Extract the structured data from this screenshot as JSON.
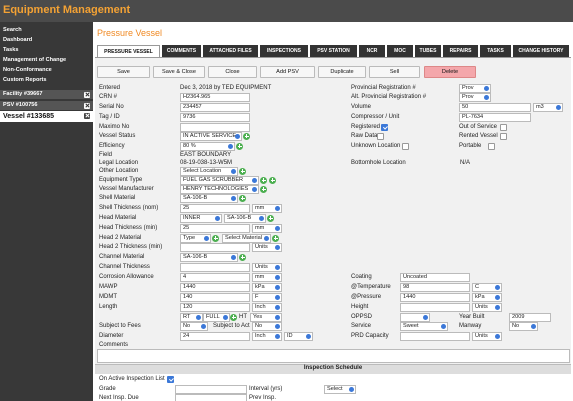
{
  "header": {
    "title": "Equipment Management"
  },
  "nav": [
    "Search",
    "Dashboard",
    "Tasks",
    "Management of Change",
    "Non-Conformance",
    "Custom Reports"
  ],
  "open_records": [
    "Facility #39667",
    "PSV #100756",
    "Vessel #133685"
  ],
  "page_title": "Pressure Vessel",
  "tabs": [
    "PRESSURE VESSEL",
    "COMMENTS",
    "ATTACHED FILES",
    "INSPECTIONS",
    "PSV STATION",
    "NCR",
    "MOC",
    "TUBES",
    "REPAIRS",
    "TASKS",
    "CHANGE HISTORY"
  ],
  "buttons": [
    "Save",
    "Save & Close",
    "Close",
    "Add PSV",
    "Duplicate",
    "Sell",
    "Delete"
  ],
  "fields": {
    "entered": {
      "label": "Entered",
      "value": "Dec 3, 2018 by TED EQUIPMENT"
    },
    "crn": {
      "label": "CRN #",
      "value": "H2364.965"
    },
    "serial": {
      "label": "Serial No",
      "value": "234457"
    },
    "tag": {
      "label": "Tag / ID",
      "value": "9736"
    },
    "maximo": {
      "label": "Maximo No"
    },
    "status": {
      "label": "Vessel Status",
      "value": "IN ACTIVE SERVICE"
    },
    "efficiency": {
      "label": "Efficiency",
      "value": "80 %"
    },
    "field": {
      "label": "Field",
      "value": "EAST BOUNDARY"
    },
    "legal": {
      "label": "Legal Location",
      "value": "08-19-038-13-W5M"
    },
    "other_location": {
      "label": "Other Location",
      "value": "Select Location"
    },
    "equipment_type": {
      "label": "Equipment Type",
      "value": "FUEL GAS SCRUBBER"
    },
    "manufacturer": {
      "label": "Vessel Manufacturer",
      "value": "HENRY TECHNOLOGIES"
    },
    "shell_material": {
      "label": "Shell Material",
      "value": "SA-106-B"
    },
    "shell_thickness": {
      "label": "Shell Thickness (nom)",
      "value": "25",
      "unit": "mm"
    },
    "head_material": {
      "label": "Head Material",
      "value": "INNER",
      "value2": "SA-106-B"
    },
    "head_thickness": {
      "label": "Head Thickness (min)",
      "value": "25",
      "unit": "mm"
    },
    "head2_material": {
      "label": "Head 2 Material",
      "value": "Type",
      "value2": "Select Material"
    },
    "head2_thickness": {
      "label": "Head 2 Thickness (min)",
      "unit": "Units"
    },
    "channel_material": {
      "label": "Channel Material",
      "value": "SA-106-B"
    },
    "channel_thickness": {
      "label": "Channel Thickness",
      "unit": "Units"
    },
    "corrosion": {
      "label": "Corrosion Allowance",
      "value": "4",
      "unit": "mm"
    },
    "mawp": {
      "label": "MAWP",
      "value": "1440",
      "unit": "kPa"
    },
    "mdmt": {
      "label": "MDMT",
      "value": "140",
      "unit": "F"
    },
    "length": {
      "label": "Length",
      "value": "120",
      "unit": "Inch"
    },
    "rt": {
      "value": "RT",
      "value2": "FULL"
    },
    "ht": {
      "label": "HT",
      "value": "Yes"
    },
    "fees": {
      "label": "Subject to Fees",
      "value": "No"
    },
    "act": {
      "label": "Subject to Act",
      "value": "No"
    },
    "diameter": {
      "label": "Diameter",
      "value": "24",
      "unit": "Inch",
      "unit2": "ID"
    },
    "comments": {
      "label": "Comments"
    },
    "prov_reg": {
      "label": "Provincial Registration #",
      "value": "Prov"
    },
    "alt_prov": {
      "label": "Alt. Provincial Registration #",
      "value": "Prov"
    },
    "volume": {
      "label": "Volume",
      "value": "50",
      "unit": "m3"
    },
    "compressor": {
      "label": "Compressor / Unit",
      "value": "PL-7634"
    },
    "registered": {
      "label": "Registered",
      "checked": true
    },
    "out_of_service": {
      "label": "Out of Service",
      "checked": false
    },
    "raw_data": {
      "label": "Raw Data",
      "checked": false
    },
    "rented": {
      "label": "Rented Vessel",
      "checked": false
    },
    "unknown_location": {
      "label": "Unknown Location",
      "checked": false
    },
    "portable": {
      "label": "Portable",
      "checked": false
    },
    "bottomhole": {
      "label": "Bottomhole Location",
      "value": "N/A"
    },
    "coating": {
      "label": "Coating",
      "value": "Uncoated"
    },
    "temperature": {
      "label": "@Temperature",
      "value": "98",
      "unit": "C"
    },
    "pressure": {
      "label": "@Pressure",
      "value": "1440",
      "unit": "kPa"
    },
    "height": {
      "label": "Height",
      "unit": "Units"
    },
    "oppsd": {
      "label": "OPPSD"
    },
    "year_built": {
      "label": "Year Built",
      "value": "2009"
    },
    "service": {
      "label": "Service",
      "value": "Sweet"
    },
    "manway": {
      "label": "Manway",
      "value": "No"
    },
    "prd": {
      "label": "PRD Capacity",
      "unit": "Units"
    }
  },
  "inspection": {
    "title": "Inspection Schedule",
    "active": {
      "label": "On Active Inspection List",
      "checked": true
    },
    "grade": {
      "label": "Grade"
    },
    "interval": {
      "label": "Interval (yrs)",
      "value": "Select"
    },
    "next": {
      "label": "Next Insp. Due"
    },
    "prev": {
      "label": "Prev Insp."
    }
  }
}
